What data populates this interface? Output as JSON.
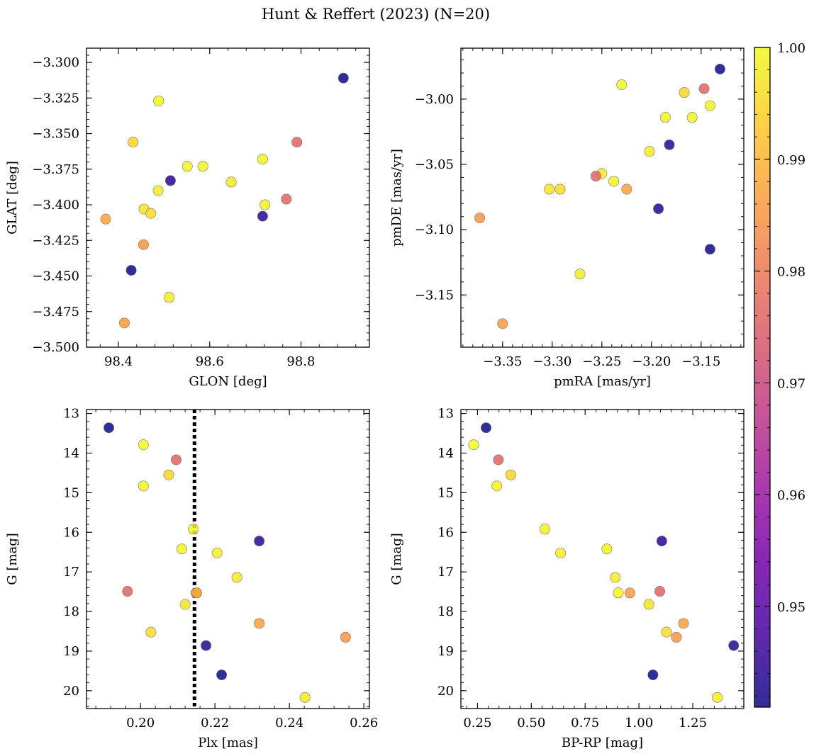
{
  "figure_title": "Hunt & Reffert (2023) (N=20)",
  "colorbar": {
    "min": 0.941,
    "max": 1.0,
    "ticks": [
      0.95,
      0.96,
      0.97,
      0.98,
      0.99,
      1.0
    ],
    "tick_labels": [
      "0.95",
      "0.96",
      "0.97",
      "0.98",
      "0.99",
      "1.00"
    ],
    "colormap": [
      "#0d0887",
      "#46039f",
      "#7201a8",
      "#9c179e",
      "#bd3786",
      "#d8576b",
      "#ed7953",
      "#fb9f3a",
      "#fdca26",
      "#f0f921"
    ]
  },
  "chart_data": [
    {
      "type": "scatter",
      "name": "glon-glat",
      "xlabel": "GLON [deg]",
      "ylabel": "GLAT [deg]",
      "xlim": [
        98.33,
        98.95
      ],
      "ylim": [
        -3.5,
        -3.29
      ],
      "y_inverted": false,
      "xticks": [
        98.4,
        98.6,
        98.8
      ],
      "xtick_labels": [
        "98.4",
        "98.6",
        "98.8"
      ],
      "yticks": [
        -3.5,
        -3.475,
        -3.45,
        -3.425,
        -3.4,
        -3.375,
        -3.35,
        -3.325,
        -3.3
      ],
      "ytick_labels": [
        "−3.500",
        "−3.475",
        "−3.450",
        "−3.425",
        "−3.400",
        "−3.375",
        "−3.350",
        "−3.325",
        "−3.300"
      ],
      "x": [
        98.893,
        98.488,
        98.791,
        98.432,
        98.716,
        98.585,
        98.551,
        98.514,
        98.647,
        98.487,
        98.768,
        98.721,
        98.456,
        98.471,
        98.372,
        98.716,
        98.455,
        98.428,
        98.511,
        98.413
      ],
      "y": [
        -3.311,
        -3.327,
        -3.356,
        -3.356,
        -3.368,
        -3.373,
        -3.373,
        -3.383,
        -3.384,
        -3.39,
        -3.396,
        -3.4,
        -3.403,
        -3.406,
        -3.41,
        -3.408,
        -3.428,
        -3.446,
        -3.465,
        -3.483
      ]
    },
    {
      "type": "scatter",
      "name": "pmra-pmde",
      "xlabel": "pmRA [mas/yr]",
      "ylabel": "pmDE [mas/yr]",
      "xlim": [
        -3.392,
        -3.107
      ],
      "ylim": [
        -3.19,
        -2.961
      ],
      "y_inverted": false,
      "xticks": [
        -3.35,
        -3.3,
        -3.25,
        -3.2,
        -3.15
      ],
      "xtick_labels": [
        "−3.35",
        "−3.30",
        "−3.25",
        "−3.20",
        "−3.15"
      ],
      "yticks": [
        -3.15,
        -3.1,
        -3.05,
        -3.0
      ],
      "ytick_labels": [
        "−3.15",
        "−3.10",
        "−3.05",
        "−3.00"
      ],
      "x": [
        -3.131,
        -3.23,
        -3.147,
        -3.167,
        -3.141,
        -3.186,
        -3.159,
        -3.182,
        -3.202,
        -3.25,
        -3.256,
        -3.238,
        -3.303,
        -3.292,
        -3.225,
        -3.193,
        -3.373,
        -3.141,
        -3.272,
        -3.35
      ],
      "y": [
        -2.977,
        -2.989,
        -2.992,
        -2.995,
        -3.005,
        -3.014,
        -3.014,
        -3.035,
        -3.04,
        -3.057,
        -3.059,
        -3.063,
        -3.069,
        -3.069,
        -3.069,
        -3.084,
        -3.091,
        -3.115,
        -3.134,
        -3.172
      ]
    },
    {
      "type": "scatter",
      "name": "plx-g",
      "xlabel": "Plx [mas]",
      "ylabel": "G [mag]",
      "xlim": [
        0.1855,
        0.2615
      ],
      "ylim": [
        20.45,
        12.9
      ],
      "y_inverted": true,
      "vline": 0.2145,
      "xticks": [
        0.2,
        0.22,
        0.24,
        0.26
      ],
      "xtick_labels": [
        "0.20",
        "0.22",
        "0.24",
        "0.26"
      ],
      "yticks": [
        13,
        14,
        15,
        16,
        17,
        18,
        19,
        20
      ],
      "ytick_labels": [
        "13",
        "14",
        "15",
        "16",
        "17",
        "18",
        "19",
        "20"
      ],
      "x": [
        0.1915,
        0.2008,
        0.2096,
        0.2076,
        0.2008,
        0.2142,
        0.2111,
        0.2319,
        0.2206,
        0.2259,
        0.1965,
        0.2149,
        0.212,
        0.2028,
        0.2319,
        0.2176,
        0.2551,
        0.2218,
        0.2442,
        0.2151
      ],
      "y": [
        13.36,
        13.79,
        14.17,
        14.55,
        14.83,
        15.92,
        16.42,
        16.22,
        16.52,
        17.14,
        17.49,
        17.53,
        17.82,
        18.52,
        18.3,
        18.86,
        18.65,
        19.6,
        20.17,
        17.53
      ]
    },
    {
      "type": "scatter",
      "name": "bprp-g",
      "xlabel": "BP-RP [mag]",
      "ylabel": "G [mag]",
      "xlim": [
        0.173,
        1.487
      ],
      "ylim": [
        20.45,
        12.9
      ],
      "y_inverted": true,
      "xticks": [
        0.25,
        0.5,
        0.75,
        1.0,
        1.25
      ],
      "xtick_labels": [
        "0.25",
        "0.50",
        "0.75",
        "1.00",
        "1.25"
      ],
      "yticks": [
        13,
        14,
        15,
        16,
        17,
        18,
        19,
        20
      ],
      "ytick_labels": [
        "13",
        "14",
        "15",
        "16",
        "17",
        "18",
        "19",
        "20"
      ],
      "x": [
        0.29,
        0.232,
        0.347,
        0.405,
        0.34,
        0.563,
        0.851,
        1.106,
        0.636,
        0.89,
        1.097,
        0.904,
        1.046,
        1.128,
        1.207,
        1.44,
        1.174,
        1.065,
        1.364,
        0.958
      ],
      "y": [
        13.36,
        13.79,
        14.17,
        14.55,
        14.83,
        15.92,
        16.42,
        16.22,
        16.52,
        17.14,
        17.49,
        17.53,
        17.82,
        18.52,
        18.3,
        18.86,
        18.65,
        19.6,
        20.17,
        17.53
      ]
    }
  ],
  "point_probability": [
    0.941,
    1.0,
    0.976,
    0.995,
    0.999,
    0.999,
    0.999,
    0.944,
    0.998,
    0.998,
    0.976,
    0.999,
    0.997,
    0.996,
    0.987,
    0.944,
    0.985,
    0.941,
    0.998,
    0.986
  ]
}
